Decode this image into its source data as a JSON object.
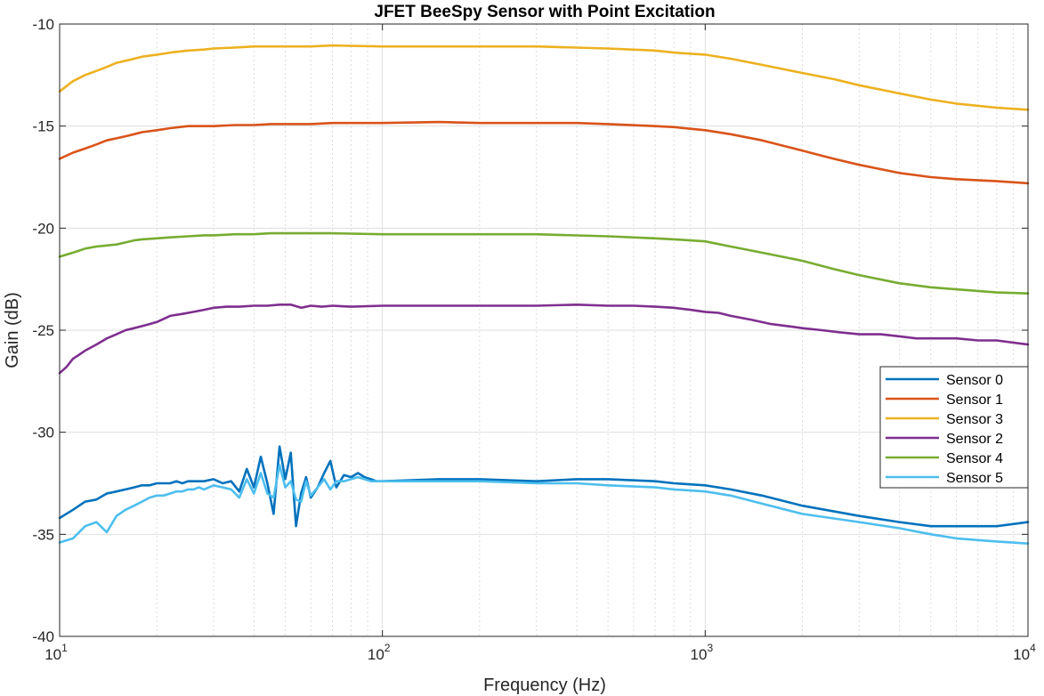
{
  "chart_data": {
    "type": "line",
    "title": "JFET BeeSpy Sensor with Point Excitation",
    "xlabel": "Frequency (Hz)",
    "ylabel": "Gain (dB)",
    "xscale": "log",
    "xlim": [
      10,
      10000
    ],
    "ylim": [
      -40,
      -10
    ],
    "xticks": [
      {
        "value": 10,
        "base": "10",
        "exp": "1"
      },
      {
        "value": 100,
        "base": "10",
        "exp": "2"
      },
      {
        "value": 1000,
        "base": "10",
        "exp": "3"
      },
      {
        "value": 10000,
        "base": "10",
        "exp": "4"
      }
    ],
    "yticks": [
      -10,
      -15,
      -20,
      -25,
      -30,
      -35,
      -40
    ],
    "ytick_labels": [
      "-10",
      "-15",
      "-20",
      "-25",
      "-30",
      "-35",
      "-40"
    ],
    "grid": true,
    "minor_grid": true,
    "legend_position": "right",
    "series": [
      {
        "name": "Sensor 0",
        "color": "#0072BD",
        "x": [
          10,
          11,
          12,
          13,
          14,
          15,
          16,
          17,
          18,
          19,
          20,
          21,
          22,
          23,
          24,
          25,
          26,
          27,
          28,
          30,
          32,
          34,
          36,
          38,
          40,
          42,
          44,
          46,
          48,
          50,
          52,
          54,
          56,
          58,
          60,
          63,
          66,
          69,
          72,
          76,
          80,
          84,
          88,
          92,
          96,
          100,
          150,
          200,
          300,
          400,
          500,
          700,
          800,
          1000,
          1200,
          1500,
          2000,
          3000,
          4000,
          5000,
          6000,
          8000,
          10000
        ],
        "y": [
          -34.2,
          -33.8,
          -33.4,
          -33.3,
          -33.0,
          -32.9,
          -32.8,
          -32.7,
          -32.6,
          -32.6,
          -32.5,
          -32.5,
          -32.5,
          -32.4,
          -32.5,
          -32.4,
          -32.4,
          -32.4,
          -32.4,
          -32.3,
          -32.5,
          -32.4,
          -32.9,
          -31.8,
          -32.7,
          -31.2,
          -32.5,
          -34.0,
          -30.7,
          -32.3,
          -31.0,
          -34.6,
          -33.0,
          -32.2,
          -33.2,
          -32.7,
          -32.0,
          -31.4,
          -32.7,
          -32.1,
          -32.2,
          -32.0,
          -32.2,
          -32.3,
          -32.4,
          -32.4,
          -32.3,
          -32.3,
          -32.4,
          -32.3,
          -32.3,
          -32.4,
          -32.5,
          -32.6,
          -32.8,
          -33.1,
          -33.6,
          -34.1,
          -34.4,
          -34.6,
          -34.6,
          -34.6,
          -34.4
        ]
      },
      {
        "name": "Sensor 1",
        "color": "#D95319",
        "x": [
          10,
          11,
          12,
          13,
          14,
          15,
          16,
          17,
          18,
          20,
          22,
          25,
          28,
          30,
          35,
          40,
          45,
          50,
          60,
          70,
          80,
          100,
          150,
          200,
          300,
          400,
          500,
          700,
          800,
          1000,
          1200,
          1500,
          2000,
          2500,
          3000,
          4000,
          5000,
          6000,
          8000,
          10000
        ],
        "y": [
          -16.6,
          -16.3,
          -16.1,
          -15.9,
          -15.7,
          -15.6,
          -15.5,
          -15.4,
          -15.3,
          -15.2,
          -15.1,
          -15.0,
          -15.0,
          -15.0,
          -14.95,
          -14.95,
          -14.9,
          -14.9,
          -14.9,
          -14.85,
          -14.85,
          -14.85,
          -14.8,
          -14.85,
          -14.85,
          -14.85,
          -14.9,
          -15.0,
          -15.05,
          -15.2,
          -15.4,
          -15.7,
          -16.2,
          -16.6,
          -16.9,
          -17.3,
          -17.5,
          -17.6,
          -17.7,
          -17.8
        ]
      },
      {
        "name": "Sensor 3",
        "color": "#EDB120",
        "x": [
          10,
          11,
          12,
          13,
          14,
          15,
          16,
          17,
          18,
          20,
          22,
          25,
          28,
          30,
          35,
          40,
          50,
          60,
          70,
          100,
          200,
          300,
          500,
          700,
          800,
          1000,
          1200,
          1500,
          2000,
          2500,
          3000,
          4000,
          5000,
          6000,
          8000,
          10000
        ],
        "y": [
          -13.3,
          -12.8,
          -12.5,
          -12.3,
          -12.1,
          -11.9,
          -11.8,
          -11.7,
          -11.6,
          -11.5,
          -11.4,
          -11.3,
          -11.25,
          -11.2,
          -11.15,
          -11.1,
          -11.1,
          -11.1,
          -11.05,
          -11.1,
          -11.1,
          -11.1,
          -11.2,
          -11.3,
          -11.4,
          -11.5,
          -11.7,
          -12.0,
          -12.4,
          -12.7,
          -13.0,
          -13.4,
          -13.7,
          -13.9,
          -14.1,
          -14.2
        ]
      },
      {
        "name": "Sensor 2",
        "color": "#7E2F8E",
        "x": [
          10,
          10.5,
          11,
          11.5,
          12,
          13,
          14,
          15,
          16,
          17,
          18,
          19,
          20,
          22,
          24,
          26,
          28,
          30,
          33,
          36,
          40,
          44,
          48,
          52,
          56,
          60,
          65,
          70,
          80,
          100,
          150,
          200,
          300,
          400,
          500,
          600,
          700,
          800,
          900,
          1000,
          1100,
          1200,
          1400,
          1600,
          1800,
          2000,
          2300,
          2600,
          3000,
          3500,
          4000,
          4500,
          5000,
          6000,
          7000,
          8000,
          10000
        ],
        "y": [
          -27.1,
          -26.8,
          -26.4,
          -26.2,
          -26.0,
          -25.7,
          -25.4,
          -25.2,
          -25.0,
          -24.9,
          -24.8,
          -24.7,
          -24.6,
          -24.3,
          -24.2,
          -24.1,
          -24.0,
          -23.9,
          -23.85,
          -23.85,
          -23.8,
          -23.8,
          -23.75,
          -23.75,
          -23.9,
          -23.8,
          -23.85,
          -23.8,
          -23.85,
          -23.8,
          -23.8,
          -23.8,
          -23.8,
          -23.75,
          -23.8,
          -23.8,
          -23.85,
          -23.9,
          -24.0,
          -24.1,
          -24.15,
          -24.3,
          -24.5,
          -24.7,
          -24.8,
          -24.9,
          -25.0,
          -25.1,
          -25.2,
          -25.2,
          -25.3,
          -25.4,
          -25.4,
          -25.4,
          -25.5,
          -25.5,
          -25.7
        ]
      },
      {
        "name": "Sensor 4",
        "color": "#77AC30",
        "x": [
          10,
          11,
          12,
          13,
          14,
          15,
          16,
          17,
          18,
          20,
          22,
          25,
          28,
          30,
          35,
          40,
          45,
          50,
          60,
          70,
          100,
          200,
          300,
          500,
          700,
          800,
          1000,
          1200,
          1500,
          2000,
          2500,
          3000,
          4000,
          5000,
          6000,
          8000,
          10000
        ],
        "y": [
          -21.4,
          -21.2,
          -21.0,
          -20.9,
          -20.85,
          -20.8,
          -20.7,
          -20.6,
          -20.55,
          -20.5,
          -20.45,
          -20.4,
          -20.35,
          -20.35,
          -20.3,
          -20.3,
          -20.25,
          -20.25,
          -20.25,
          -20.25,
          -20.3,
          -20.3,
          -20.3,
          -20.4,
          -20.5,
          -20.55,
          -20.65,
          -20.9,
          -21.2,
          -21.6,
          -22.0,
          -22.3,
          -22.7,
          -22.9,
          -23.0,
          -23.15,
          -23.2
        ]
      },
      {
        "name": "Sensor 5",
        "color": "#4DBEEE",
        "x": [
          10,
          11,
          12,
          13,
          14,
          15,
          16,
          17,
          18,
          19,
          20,
          21,
          22,
          23,
          24,
          25,
          26,
          27,
          28,
          30,
          32,
          34,
          36,
          38,
          40,
          42,
          44,
          46,
          48,
          50,
          52,
          54,
          56,
          58,
          60,
          63,
          66,
          69,
          72,
          76,
          80,
          84,
          88,
          92,
          96,
          100,
          150,
          200,
          300,
          400,
          500,
          700,
          800,
          1000,
          1200,
          1500,
          2000,
          3000,
          4000,
          5000,
          6000,
          8000,
          10000
        ],
        "y": [
          -35.4,
          -35.2,
          -34.6,
          -34.4,
          -34.9,
          -34.1,
          -33.8,
          -33.6,
          -33.4,
          -33.2,
          -33.1,
          -33.1,
          -33.0,
          -32.9,
          -32.9,
          -32.8,
          -32.8,
          -32.7,
          -32.8,
          -32.6,
          -32.7,
          -32.8,
          -33.2,
          -32.3,
          -33.0,
          -32.0,
          -33.0,
          -33.2,
          -31.6,
          -32.7,
          -32.4,
          -33.3,
          -33.4,
          -32.4,
          -33.1,
          -32.7,
          -32.3,
          -32.8,
          -32.4,
          -32.4,
          -32.3,
          -32.2,
          -32.3,
          -32.4,
          -32.4,
          -32.4,
          -32.4,
          -32.4,
          -32.5,
          -32.5,
          -32.6,
          -32.7,
          -32.8,
          -32.9,
          -33.1,
          -33.5,
          -34.0,
          -34.4,
          -34.7,
          -35.0,
          -35.2,
          -35.35,
          -35.45
        ]
      }
    ]
  }
}
